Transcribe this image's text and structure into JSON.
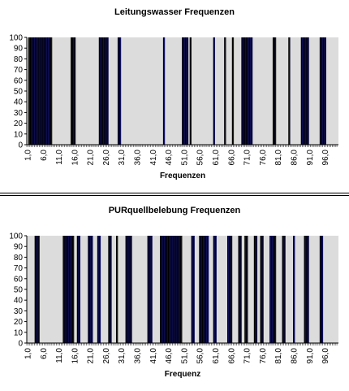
{
  "chart_data": [
    {
      "type": "bar",
      "title": "Leitungswasser Frequenzen",
      "xlabel": "Frequenzen",
      "ylabel": "",
      "ylim": [
        0,
        100
      ],
      "yticks": [
        0,
        10,
        20,
        30,
        40,
        50,
        60,
        70,
        80,
        90,
        100
      ],
      "xticks": [
        "1,0",
        "6,0",
        "11,0",
        "16,0",
        "21,0",
        "26,0",
        "31,0",
        "36,0",
        "41,0",
        "46,0",
        "51,0",
        "56,0",
        "61,0",
        "66,0",
        "71,0",
        "76,0",
        "81,0",
        "86,0",
        "91,0",
        "96,0"
      ],
      "x_range": [
        1,
        100
      ],
      "x_step": 0.5,
      "bar_value": 100,
      "colors": {
        "plot_bg": "#dcdcdc",
        "bar": "#000000",
        "bar_edge": "#1a1aa0"
      },
      "bars_x": [
        1.5,
        2.0,
        2.5,
        3.0,
        3.5,
        4.0,
        4.5,
        5.0,
        5.5,
        6.0,
        6.5,
        7.0,
        7.5,
        8.0,
        8.5,
        15.0,
        15.5,
        16.0,
        24.0,
        24.5,
        25.0,
        25.5,
        26.0,
        26.5,
        30.0,
        30.5,
        44.5,
        50.5,
        51.0,
        51.5,
        52.0,
        53.0,
        60.5,
        64.0,
        66.5,
        69.5,
        70.0,
        70.5,
        71.0,
        71.5,
        72.0,
        72.5,
        79.5,
        80.0,
        84.5,
        88.5,
        89.0,
        89.5,
        90.0,
        90.5,
        94.5,
        95.0,
        95.5,
        96.0
      ]
    },
    {
      "type": "bar",
      "title": "PURquellbelebung Frequenzen",
      "xlabel": "Frequenz",
      "ylabel": "",
      "ylim": [
        0,
        100
      ],
      "yticks": [
        0,
        10,
        20,
        30,
        40,
        50,
        60,
        70,
        80,
        90,
        100
      ],
      "xticks": [
        "1,0",
        "6,0",
        "11,0",
        "16,0",
        "21,0",
        "26,0",
        "31,0",
        "36,0",
        "41,0",
        "46,0",
        "51,0",
        "56,0",
        "61,0",
        "66,0",
        "71,0",
        "76,0",
        "81,0",
        "86,0",
        "91,0",
        "96,0"
      ],
      "x_range": [
        1,
        100
      ],
      "x_step": 0.5,
      "bar_value": 100,
      "colors": {
        "plot_bg": "#dcdcdc",
        "bar": "#000000",
        "bar_edge": "#1a1aa0"
      },
      "bars_x": [
        3.5,
        4.0,
        4.5,
        12.5,
        13.0,
        13.5,
        14.0,
        14.5,
        15.0,
        15.5,
        17.0,
        17.5,
        20.5,
        21.0,
        21.5,
        23.5,
        24.0,
        27.0,
        27.5,
        29.5,
        32.5,
        33.0,
        33.5,
        34.0,
        39.5,
        40.0,
        40.5,
        43.5,
        44.0,
        44.5,
        45.0,
        45.5,
        46.0,
        46.5,
        47.0,
        47.5,
        48.0,
        48.5,
        49.0,
        49.5,
        50.0,
        53.5,
        54.0,
        56.0,
        56.5,
        57.0,
        57.5,
        58.0,
        58.5,
        60.5,
        61.0,
        65.0,
        65.5,
        66.0,
        68.5,
        69.0,
        70.5,
        71.0,
        73.5,
        74.0,
        75.5,
        76.0,
        78.5,
        79.0,
        79.5,
        80.0,
        82.5,
        83.0,
        86.0,
        89.5,
        90.0,
        90.5,
        94.5,
        95.0
      ]
    }
  ]
}
